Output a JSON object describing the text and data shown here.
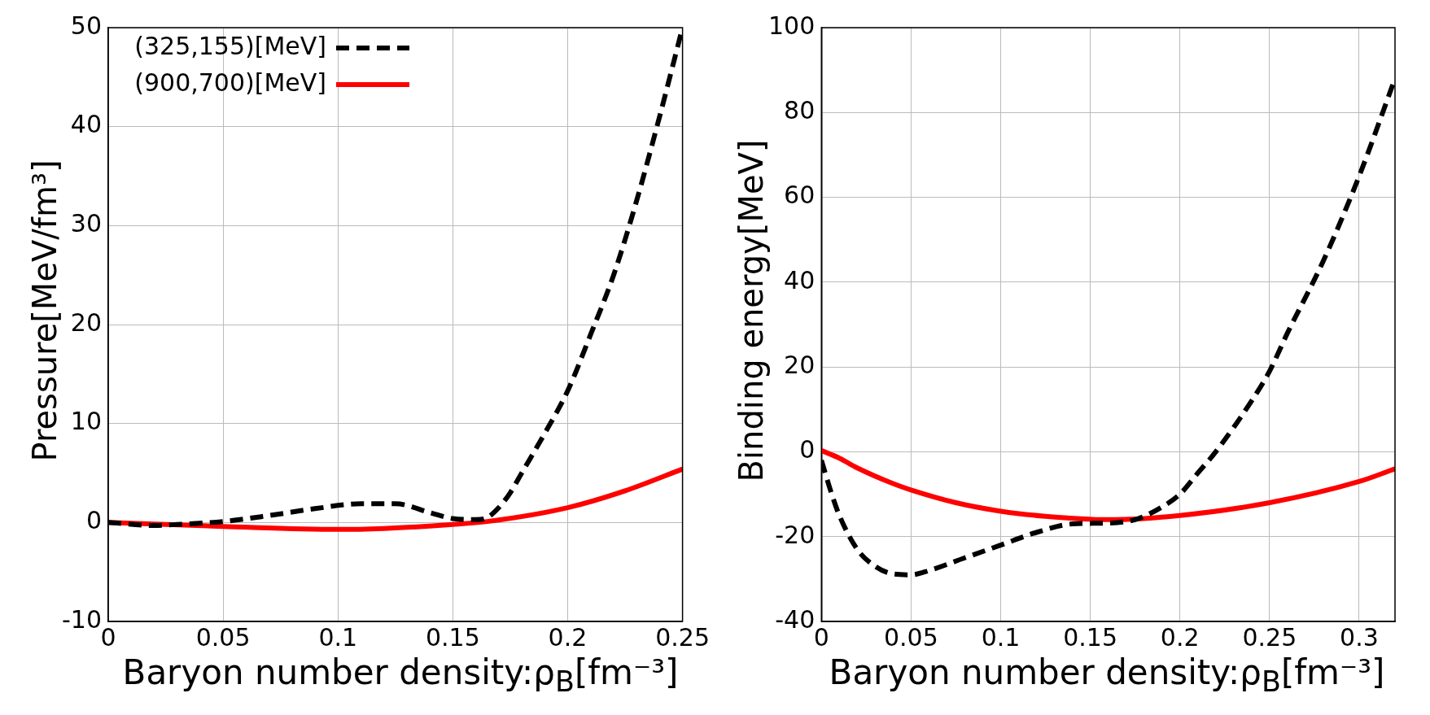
{
  "chart_data": [
    {
      "type": "line",
      "xlabel": "Baryon number density:ρ$_{B}$[fm⁻³]",
      "ylabel": "Pressure[MeV/fm³]",
      "xlim": [
        0,
        0.25
      ],
      "xticks": [
        0,
        0.05,
        0.1,
        0.15,
        0.2,
        0.25
      ],
      "ylim": [
        -10,
        50
      ],
      "yticks": [
        -10,
        0,
        10,
        20,
        30,
        40,
        50
      ],
      "grid": true,
      "legend": "top left",
      "series": [
        {
          "name": "(325,155)[MeV]",
          "color": "#000000",
          "line_style": "dashed",
          "x": [
            0,
            0.02,
            0.03,
            0.05,
            0.07,
            0.09,
            0.11,
            0.125,
            0.14,
            0.15,
            0.16,
            0.165,
            0.17,
            0.175,
            0.18,
            0.19,
            0.2,
            0.21,
            0.22,
            0.23,
            0.24,
            0.25
          ],
          "values": [
            0,
            -0.3,
            -0.2,
            0.1,
            0.7,
            1.4,
            1.9,
            1.9,
            1.0,
            0.4,
            0.3,
            0.5,
            1.5,
            3,
            5,
            9,
            13.3,
            19,
            25,
            32.5,
            41,
            50
          ]
        },
        {
          "name": "(900,700)[MeV]",
          "color": "#ff0000",
          "line_style": "solid",
          "x": [
            0,
            0.05,
            0.1,
            0.12,
            0.15,
            0.165,
            0.2,
            0.225,
            0.25
          ],
          "values": [
            0,
            -0.4,
            -0.7,
            -0.6,
            -0.2,
            0.1,
            1.5,
            3.2,
            5.4
          ]
        }
      ]
    },
    {
      "type": "line",
      "xlabel": "Baryon number density:ρ$_{B}$[fm⁻³]",
      "ylabel": "Binding energy[MeV]",
      "xlim": [
        0,
        0.32
      ],
      "xticks": [
        0,
        0.05,
        0.1,
        0.15,
        0.2,
        0.25,
        0.3
      ],
      "ylim": [
        -40,
        100
      ],
      "yticks": [
        -40,
        -20,
        0,
        20,
        40,
        60,
        80,
        100
      ],
      "grid": true,
      "series": [
        {
          "color": "#000000",
          "line_style": "dashed",
          "x": [
            0,
            0.005,
            0.01,
            0.02,
            0.03,
            0.04,
            0.05,
            0.06,
            0.08,
            0.1,
            0.12,
            0.14,
            0.16,
            0.175,
            0.19,
            0.2,
            0.21,
            0.22,
            0.24,
            0.25,
            0.26,
            0.28,
            0.3,
            0.32
          ],
          "values": [
            -2,
            -9,
            -15,
            -23,
            -27,
            -28.8,
            -29,
            -28,
            -25,
            -22,
            -19,
            -17,
            -16.8,
            -16,
            -13,
            -10,
            -5,
            0,
            12,
            19,
            28,
            45,
            65,
            88
          ]
        },
        {
          "color": "#ff0000",
          "line_style": "solid",
          "x": [
            0,
            0.01,
            0.02,
            0.04,
            0.05,
            0.075,
            0.1,
            0.125,
            0.16,
            0.2,
            0.25,
            0.3,
            0.32
          ],
          "values": [
            0.3,
            -1.5,
            -3.8,
            -7.5,
            -9,
            -12,
            -14,
            -15.2,
            -16,
            -15,
            -12,
            -7,
            -4
          ]
        }
      ]
    }
  ]
}
